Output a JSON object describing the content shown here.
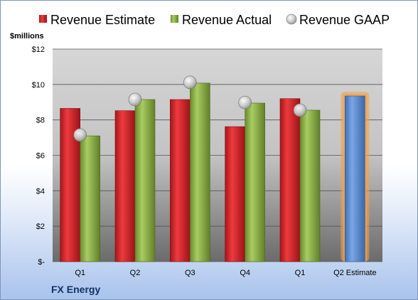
{
  "chart_data": {
    "type": "bar",
    "unit_label": "$millions",
    "footer": "FX Energy",
    "categories": [
      "Q1",
      "Q2",
      "Q3",
      "Q4",
      "Q1",
      "Q2 Estimate"
    ],
    "ylim": [
      0,
      12
    ],
    "yticks": [
      "$-",
      "$2",
      "$4",
      "$6",
      "$8",
      "$10",
      "$12"
    ],
    "grid": true,
    "legend_position": "top",
    "series": [
      {
        "name": "Revenue Estimate",
        "kind": "bar",
        "color": "#d9262b",
        "values": [
          8.65,
          8.52,
          9.15,
          7.62,
          9.2,
          9.35
        ]
      },
      {
        "name": "Revenue Actual",
        "kind": "bar",
        "color": "#8fb34a",
        "values": [
          7.1,
          9.15,
          10.08,
          8.95,
          8.55,
          null
        ]
      },
      {
        "name": "Revenue GAAP",
        "kind": "marker",
        "color": "#c8c8c8",
        "values": [
          7.15,
          9.15,
          10.12,
          8.98,
          8.55,
          null
        ]
      }
    ],
    "highlight": {
      "category_index": 5,
      "color": "#5b8fd6",
      "glow": "#f4a14a"
    }
  }
}
